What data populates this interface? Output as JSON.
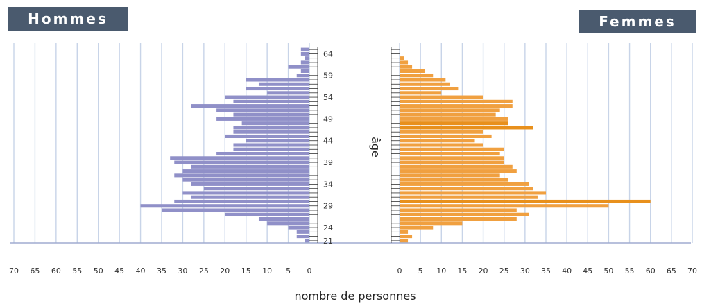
{
  "chart_data": {
    "type": "bar",
    "orientation": "horizontal",
    "layout": "population-pyramid",
    "xlabel": "nombre de personnes",
    "ylabel": "âge",
    "xlim": [
      0,
      70
    ],
    "x_ticks": [
      70,
      65,
      60,
      55,
      50,
      45,
      40,
      35,
      30,
      25,
      20,
      15,
      10,
      5,
      0
    ],
    "x_ticks_right": [
      0,
      5,
      10,
      15,
      20,
      25,
      30,
      35,
      40,
      45,
      50,
      55,
      60,
      65,
      70
    ],
    "age_ticks": [
      64,
      59,
      54,
      49,
      44,
      39,
      34,
      29,
      24,
      21
    ],
    "grid": "vertical",
    "colors": {
      "hommes": "#9090c8",
      "femmes": "#f0a040",
      "femmes_highlight": "#e8901c",
      "header_bg": "#4a5a6e",
      "grid": "#c8d4e8",
      "ages_axis": "#333333"
    },
    "ages": [
      21,
      22,
      23,
      24,
      25,
      26,
      27,
      28,
      29,
      30,
      31,
      32,
      33,
      34,
      35,
      36,
      37,
      38,
      39,
      40,
      41,
      42,
      43,
      44,
      45,
      46,
      47,
      48,
      49,
      50,
      51,
      52,
      53,
      54,
      55,
      56,
      57,
      58,
      59,
      60,
      61,
      62,
      63,
      64,
      65
    ],
    "series": [
      {
        "name": "Hommes",
        "side": "left",
        "values": [
          1,
          3,
          3,
          5,
          10,
          12,
          20,
          35,
          40,
          32,
          28,
          30,
          25,
          28,
          30,
          32,
          30,
          28,
          32,
          33,
          22,
          18,
          18,
          15,
          20,
          18,
          18,
          16,
          22,
          18,
          22,
          28,
          18,
          20,
          10,
          15,
          12,
          15,
          3,
          2,
          5,
          2,
          1,
          2,
          2
        ]
      },
      {
        "name": "Femmes",
        "side": "right",
        "values": [
          2,
          3,
          2,
          8,
          15,
          28,
          31,
          28,
          50,
          60,
          33,
          35,
          32,
          31,
          26,
          24,
          28,
          27,
          25,
          25,
          24,
          25,
          20,
          18,
          22,
          20,
          32,
          26,
          26,
          23,
          24,
          27,
          27,
          20,
          10,
          14,
          12,
          11,
          8,
          6,
          3,
          2,
          1,
          0,
          0
        ]
      }
    ]
  },
  "headers": {
    "left": "Hommes",
    "right": "Femmes"
  }
}
